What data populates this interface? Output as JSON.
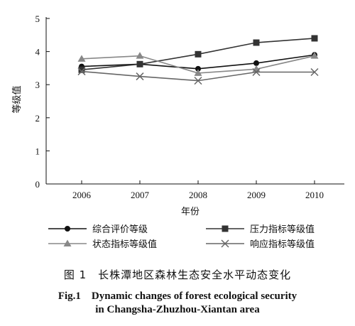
{
  "chart_data": {
    "type": "line",
    "xlabel": "年份",
    "ylabel": "等级值",
    "categories": [
      "2006",
      "2007",
      "2008",
      "2009",
      "2010"
    ],
    "ylim": [
      0,
      5
    ],
    "yticks": [
      0,
      1,
      2,
      3,
      4,
      5
    ],
    "grid": false,
    "legend_position": "bottom",
    "series": [
      {
        "name": "综合评价等级",
        "marker": "circle",
        "color": "#111111",
        "values": [
          3.55,
          3.62,
          3.48,
          3.65,
          3.9
        ]
      },
      {
        "name": "压力指标等级值",
        "marker": "square",
        "color": "#333333",
        "values": [
          3.45,
          3.62,
          3.92,
          4.27,
          4.4
        ]
      },
      {
        "name": "状态指标等级值",
        "marker": "triangle",
        "color": "#888888",
        "values": [
          3.78,
          3.87,
          3.35,
          3.47,
          3.87
        ]
      },
      {
        "name": "响应指标等级值",
        "marker": "x",
        "color": "#666666",
        "values": [
          3.4,
          3.25,
          3.12,
          3.38,
          3.38
        ]
      }
    ]
  },
  "caption": {
    "chinese": "图 1　长株潭地区森林生态安全水平动态变化",
    "english_line1": "Fig.1　Dynamic changes of forest ecological security",
    "english_line2": "in Changsha-Zhuzhou-Xiantan area"
  }
}
